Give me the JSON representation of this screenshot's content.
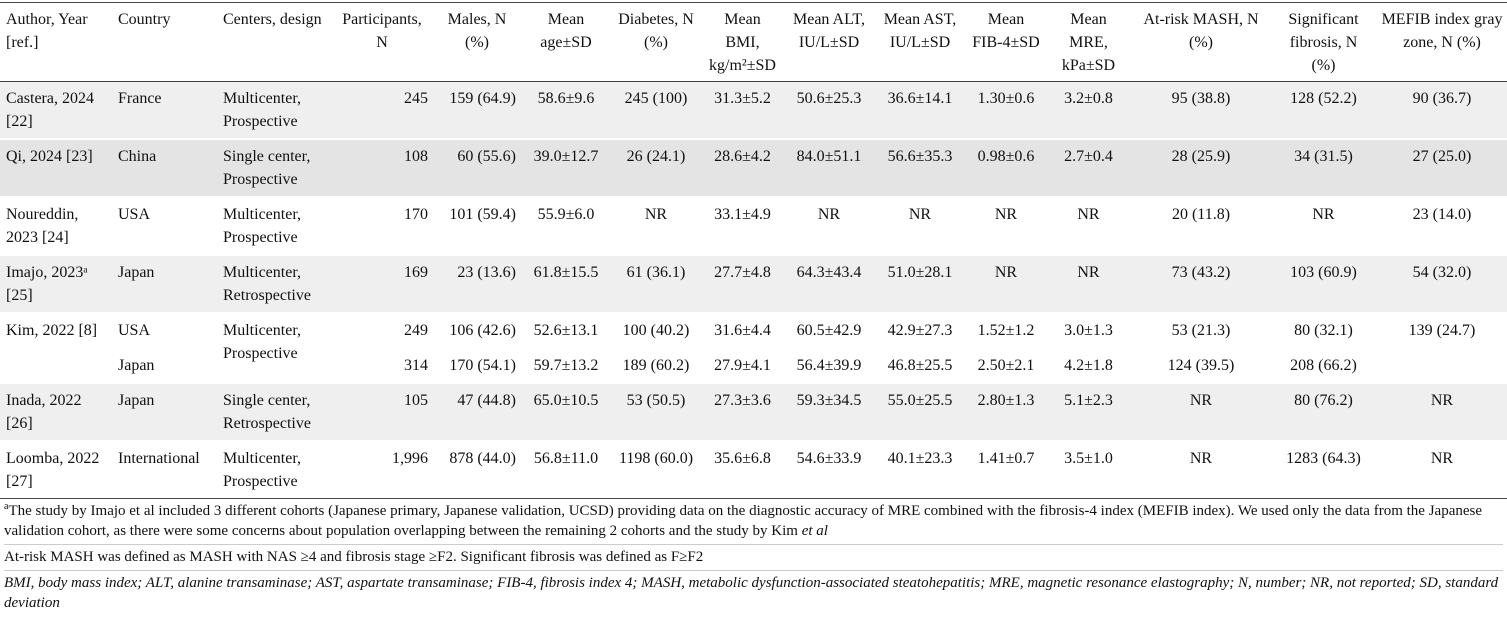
{
  "table": {
    "header": [
      "Author, Year [ref.]",
      "Country",
      "Centers, design",
      "Participants, N",
      "Males, N (%)",
      "Mean age±SD",
      "Diabetes, N (%)",
      "Mean BMI, kg/m²±SD",
      "Mean ALT, IU/L±SD",
      "Mean AST, IU/L±SD",
      "Mean FIB-4±SD",
      "Mean MRE, kPa±SD",
      "At-risk MASH, N (%)",
      "Significant fibrosis, N (%)",
      "MEFIB index gray zone, N (%)"
    ],
    "rows": [
      {
        "author": "Castera, 2024 [22]",
        "design": "Multicenter, Prospective",
        "mefib": "90 (36.7)",
        "subrows": [
          [
            "France",
            "245",
            "159 (64.9)",
            "58.6±9.6",
            "245 (100)",
            "31.3±5.2",
            "50.6±25.3",
            "36.6±14.1",
            "1.30±0.6",
            "3.2±0.8",
            "95 (38.8)",
            "128 (52.2)"
          ]
        ]
      },
      {
        "author": "Qi, 2024 [23]",
        "design": "Single center, Prospective",
        "mefib": "27 (25.0)",
        "subrows": [
          [
            "China",
            "108",
            "60 (55.6)",
            "39.0±12.7",
            "26 (24.1)",
            "28.6±4.2",
            "84.0±51.1",
            "56.6±35.3",
            "0.98±0.6",
            "2.7±0.4",
            "28 (25.9)",
            "34 (31.5)"
          ]
        ]
      },
      {
        "author": "Noureddin, 2023 [24]",
        "design": "Multicenter, Prospective",
        "mefib": "23 (14.0)",
        "subrows": [
          [
            "USA",
            "170",
            "101 (59.4)",
            "55.9±6.0",
            "NR",
            "33.1±4.9",
            "NR",
            "NR",
            "NR",
            "NR",
            "20 (11.8)",
            "NR"
          ]
        ]
      },
      {
        "author": "Imajo, 2023ᵃ [25]",
        "design": "Multicenter, Retrospective",
        "mefib": "54 (32.0)",
        "subrows": [
          [
            "Japan",
            "169",
            "23 (13.6)",
            "61.8±15.5",
            "61 (36.1)",
            "27.7±4.8",
            "64.3±43.4",
            "51.0±28.1",
            "NR",
            "NR",
            "73 (43.2)",
            "103 (60.9)"
          ]
        ]
      },
      {
        "author": "Kim, 2022 [8]",
        "design": "Multicenter, Prospective",
        "mefib": "139 (24.7)",
        "subrows": [
          [
            "USA",
            "249",
            "106 (42.6)",
            "52.6±13.1",
            "100 (40.2)",
            "31.6±4.4",
            "60.5±42.9",
            "42.9±27.3",
            "1.52±1.2",
            "3.0±1.3",
            "53 (21.3)",
            "80 (32.1)"
          ],
          [
            "Japan",
            "314",
            "170 (54.1)",
            "59.7±13.2",
            "189 (60.2)",
            "27.9±4.1",
            "56.4±39.9",
            "46.8±25.5",
            "2.50±2.1",
            "4.2±1.8",
            "124 (39.5)",
            "208 (66.2)"
          ]
        ]
      },
      {
        "author": "Inada, 2022 [26]",
        "design": "Single center, Retrospective",
        "mefib": "NR",
        "subrows": [
          [
            "Japan",
            "105",
            "47 (44.8)",
            "65.0±10.5",
            "53 (50.5)",
            "27.3±3.6",
            "59.3±34.5",
            "55.0±25.5",
            "2.80±1.3",
            "5.1±2.3",
            "NR",
            "80 (76.2)"
          ]
        ]
      },
      {
        "author": "Loomba, 2022 [27]",
        "design": "Multicenter, Prospective",
        "mefib": "NR",
        "subrows": [
          [
            "International",
            "1,996",
            "878 (44.0)",
            "56.8±11.0",
            "1198 (60.0)",
            "35.6±6.8",
            "54.6±33.9",
            "40.1±23.3",
            "1.41±0.7",
            "3.5±1.0",
            "NR",
            "1283 (64.3)"
          ]
        ]
      }
    ]
  },
  "footnotes": [
    {
      "marker": "a",
      "text": "The study by Imajo et al included 3 different cohorts (Japanese primary, Japanese validation, UCSD) providing data on the diagnostic accuracy of MRE combined with the fibrosis-4 index (MEFIB index). We used only the data from the Japanese validation cohort, as there were some concerns about population overlapping between the remaining 2 cohorts and the study by Kim",
      "emphasis": "et al"
    },
    {
      "text": "At-risk MASH was defined as MASH with NAS ≥4 and fibrosis stage ≥F2. Significant fibrosis was defined as F≥F2"
    },
    {
      "text": "BMI, body mass index; ALT, alanine transaminase; AST, aspartate transaminase; FIB-4, fibrosis index 4; MASH, metabolic dysfunction-associated steatohepatitis; MRE, magnetic resonance elastography; N, number; NR, not reported; SD, standard deviation"
    }
  ]
}
